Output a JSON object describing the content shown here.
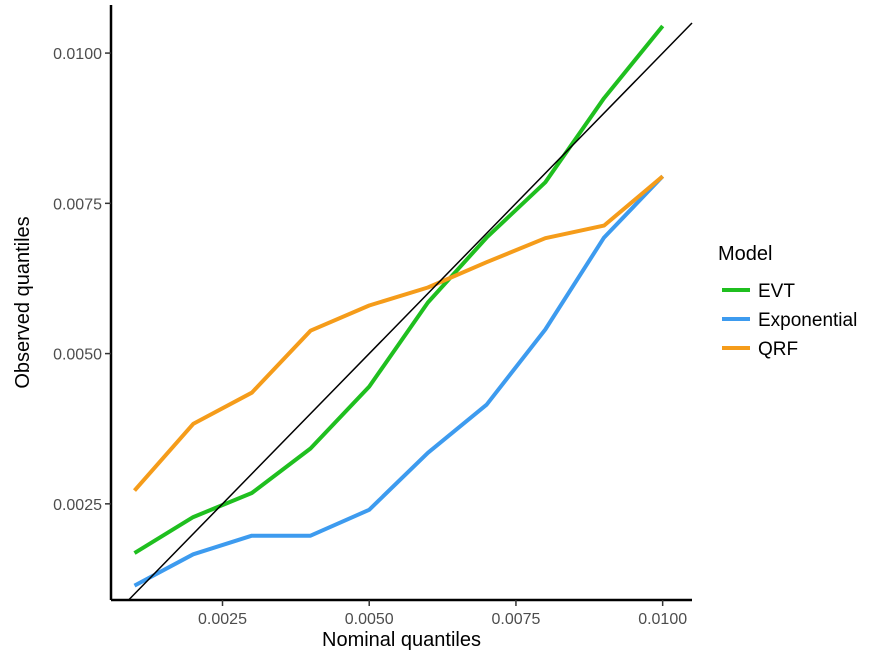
{
  "chart_data": {
    "type": "line",
    "xlabel": "Nominal quantiles",
    "ylabel": "Observed quantiles",
    "xlim": [
      0.0006,
      0.0105
    ],
    "ylim": [
      0.0009,
      0.0108
    ],
    "x_ticks": [
      0.0025,
      0.005,
      0.0075,
      0.01
    ],
    "x_tick_labels": [
      "0.0025",
      "0.0050",
      "0.0075",
      "0.0100"
    ],
    "y_ticks": [
      0.0025,
      0.005,
      0.0075,
      0.01
    ],
    "y_tick_labels": [
      "0.0025",
      "0.0050",
      "0.0075",
      "0.0100"
    ],
    "grid": false,
    "reference_line": {
      "type": "identity",
      "color": "#000000"
    },
    "legend": {
      "title": "Model",
      "position": "right"
    },
    "x": [
      0.001,
      0.002,
      0.003,
      0.004,
      0.005,
      0.006,
      0.007,
      0.008,
      0.009,
      0.01
    ],
    "series": [
      {
        "name": "EVT",
        "color": "#1fbf1f",
        "values": [
          0.00168,
          0.00228,
          0.00268,
          0.00342,
          0.00445,
          0.00585,
          0.00693,
          0.00785,
          0.00925,
          0.01045
        ]
      },
      {
        "name": "Exponential",
        "color": "#3d9bef",
        "values": [
          0.00114,
          0.00166,
          0.00197,
          0.00197,
          0.0024,
          0.00335,
          0.00415,
          0.0054,
          0.00693,
          0.00795
        ]
      },
      {
        "name": "QRF",
        "color": "#f59c1a",
        "values": [
          0.00272,
          0.00383,
          0.00435,
          0.00538,
          0.0058,
          0.0061,
          0.00652,
          0.00692,
          0.00713,
          0.00795
        ]
      }
    ]
  }
}
